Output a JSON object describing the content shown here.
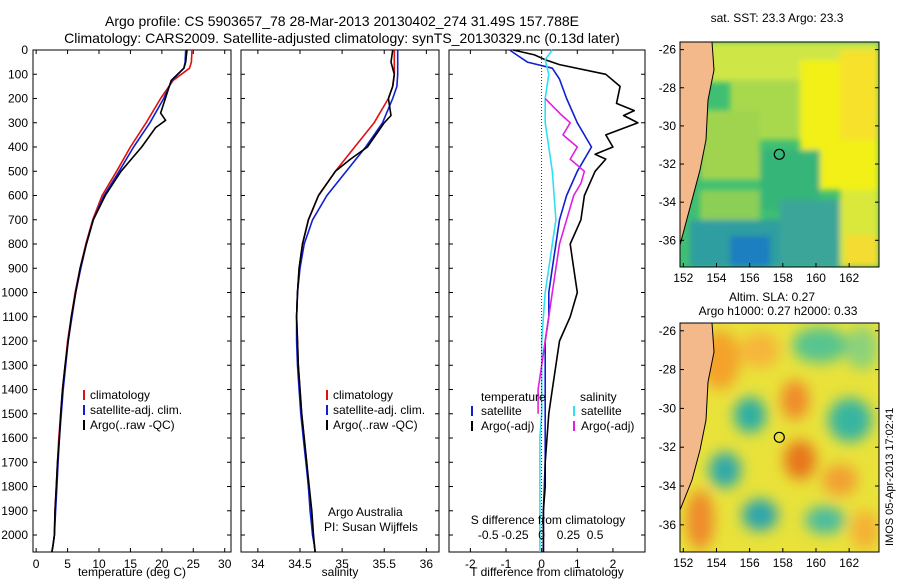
{
  "title": {
    "line1": "Argo profile: CS 5903657_78 28-Mar-2013 20130402_274 31.49S 157.788E",
    "line2": "Climatology: CARS2009. Satellite-adjusted climatology: synTS_20130329.nc (0.13d later)"
  },
  "colors": {
    "climatology": "#e01010",
    "satellite": "#1020d0",
    "argo": "#000000",
    "sal_satellite": "#30e0f0",
    "sal_argo": "#e020e0",
    "land": "#f4b98a"
  },
  "chart_data": [
    {
      "type": "line",
      "id": "temperature",
      "xlabel": "temperature (deg C)",
      "ylabel": "",
      "xlim": [
        -0.5,
        31
      ],
      "ylim": [
        2070,
        0
      ],
      "xticks": [
        0,
        5,
        10,
        15,
        20,
        25,
        30
      ],
      "yticks": [
        0,
        100,
        200,
        300,
        400,
        500,
        600,
        700,
        800,
        900,
        1000,
        1100,
        1200,
        1300,
        1400,
        1500,
        1600,
        1700,
        1800,
        1900,
        2000
      ],
      "legend": [
        "climatology",
        "satellite-adj. clim.",
        "Argo(..raw -QC)"
      ],
      "legend_position": "lower-right",
      "series": [
        {
          "name": "climatology",
          "color_key": "climatology",
          "x": [
            24.8,
            24.7,
            24.4,
            21.8,
            19.8,
            17.5,
            15.0,
            12.8,
            10.5,
            9.0,
            7.9,
            7.0,
            6.2,
            5.6,
            5.0,
            4.6,
            4.2,
            3.9,
            3.6,
            3.4,
            3.2,
            3.0,
            2.9,
            2.7,
            2.5
          ],
          "y": [
            0,
            50,
            75,
            125,
            200,
            300,
            400,
            500,
            600,
            700,
            800,
            900,
            1000,
            1100,
            1200,
            1300,
            1400,
            1500,
            1600,
            1700,
            1800,
            1900,
            2000,
            2040,
            2070
          ]
        },
        {
          "name": "satellite-adj. clim.",
          "color_key": "satellite",
          "x": [
            23.8,
            23.7,
            23.5,
            21.6,
            20.3,
            18.1,
            15.5,
            13.2,
            10.8,
            9.1,
            8.0,
            7.1,
            6.3,
            5.7,
            5.1,
            4.7,
            4.3,
            4.0,
            3.7,
            3.5,
            3.3,
            3.1,
            2.9,
            2.7,
            2.5
          ],
          "y": [
            0,
            50,
            75,
            125,
            200,
            300,
            400,
            500,
            600,
            700,
            800,
            900,
            1000,
            1100,
            1200,
            1300,
            1400,
            1500,
            1600,
            1700,
            1800,
            1900,
            2000,
            2040,
            2070
          ]
        },
        {
          "name": "Argo(..raw -QC)",
          "color_key": "argo",
          "x": [
            24.0,
            23.8,
            23.5,
            21.5,
            20.8,
            19.8,
            20.6,
            19.0,
            16.8,
            13.5,
            11.0,
            9.1,
            8.0,
            7.0,
            6.3,
            5.6,
            5.1,
            4.6,
            4.2,
            3.9,
            3.7,
            3.4,
            3.2,
            3.0,
            2.9,
            2.7,
            2.5
          ],
          "y": [
            0,
            50,
            75,
            125,
            180,
            260,
            290,
            320,
            400,
            500,
            600,
            700,
            800,
            900,
            1000,
            1100,
            1200,
            1300,
            1400,
            1500,
            1600,
            1700,
            1800,
            1900,
            2000,
            2040,
            2070
          ]
        }
      ]
    },
    {
      "type": "line",
      "id": "salinity",
      "xlabel": "salinity",
      "ylabel": "",
      "xlim": [
        33.8,
        36.15
      ],
      "ylim": [
        2070,
        0
      ],
      "xticks": [
        34,
        34.5,
        35,
        35.5,
        36
      ],
      "legend": [
        "climatology",
        "satellite-adj. clim.",
        "Argo(..raw -QC)"
      ],
      "legend_position": "lower-right",
      "annotation": [
        "Argo Australia",
        "PI: Susan Wijffels"
      ],
      "series": [
        {
          "name": "climatology",
          "color_key": "climatology",
          "x": [
            35.62,
            35.62,
            35.6,
            35.55,
            35.38,
            35.15,
            34.92,
            34.72,
            34.6,
            34.53,
            34.49,
            34.47,
            34.46,
            34.47,
            34.48,
            34.5,
            34.52,
            34.55,
            34.58,
            34.6,
            34.63,
            34.65,
            34.67,
            34.68
          ],
          "y": [
            0,
            100,
            150,
            200,
            300,
            400,
            500,
            600,
            700,
            800,
            900,
            1000,
            1100,
            1200,
            1300,
            1400,
            1500,
            1600,
            1700,
            1800,
            1900,
            2000,
            2040,
            2070
          ]
        },
        {
          "name": "satellite-adj. clim.",
          "color_key": "satellite",
          "x": [
            35.66,
            35.66,
            35.65,
            35.6,
            35.48,
            35.28,
            35.05,
            34.82,
            34.65,
            34.55,
            34.5,
            34.47,
            34.46,
            34.46,
            34.47,
            34.49,
            34.51,
            34.54,
            34.57,
            34.6,
            34.62,
            34.65,
            34.67,
            34.68
          ],
          "y": [
            0,
            100,
            150,
            200,
            300,
            400,
            500,
            600,
            700,
            800,
            900,
            1000,
            1100,
            1200,
            1300,
            1400,
            1500,
            1600,
            1700,
            1800,
            1900,
            2000,
            2040,
            2070
          ]
        },
        {
          "name": "Argo(..raw -QC)",
          "color_key": "argo",
          "x": [
            35.6,
            35.58,
            35.62,
            35.6,
            35.55,
            35.58,
            35.5,
            35.3,
            35.1,
            34.92,
            34.72,
            34.6,
            34.53,
            34.49,
            34.47,
            34.46,
            34.47,
            34.48,
            34.5,
            34.52,
            34.55,
            34.58,
            34.61,
            34.64,
            34.66,
            34.68
          ],
          "y": [
            0,
            50,
            100,
            150,
            200,
            270,
            300,
            400,
            450,
            500,
            600,
            700,
            800,
            900,
            1000,
            1100,
            1200,
            1300,
            1400,
            1500,
            1600,
            1700,
            1800,
            1900,
            2000,
            2070
          ]
        }
      ]
    },
    {
      "type": "line",
      "id": "difference",
      "xlabel": "T difference from climatology",
      "xlabel_top": "S difference from climatology",
      "xlim": [
        -2.6,
        2.9
      ],
      "ylim": [
        2070,
        0
      ],
      "xticks": [
        -2,
        -1,
        0,
        1,
        2
      ],
      "xticks_secondary": [
        {
          "pos": -1.5,
          "label": "-0.5"
        },
        {
          "pos": -0.75,
          "label": "-0.25"
        },
        {
          "pos": 0,
          "label": "0"
        },
        {
          "pos": 0.75,
          "label": "0.25"
        },
        {
          "pos": 1.5,
          "label": "0.5"
        }
      ],
      "legend_left": {
        "title": "temperature",
        "items": [
          "satellite",
          "Argo(-adj)"
        ]
      },
      "legend_right": {
        "title": "salinity",
        "items": [
          "satellite",
          "Argo(-adj)"
        ]
      },
      "series": [
        {
          "name": "temperature satellite",
          "color_key": "satellite",
          "x": [
            -0.9,
            -0.7,
            -0.4,
            0.3,
            0.5,
            0.7,
            1.0,
            1.4,
            1.0,
            0.7,
            0.5,
            0.4,
            0.3,
            0.2,
            0.2,
            0.1,
            0.1,
            0.1,
            0.1,
            0.1,
            0.05,
            0.05
          ],
          "y": [
            0,
            20,
            50,
            75,
            120,
            200,
            300,
            400,
            500,
            600,
            700,
            800,
            900,
            1000,
            1100,
            1200,
            1300,
            1400,
            1500,
            1700,
            1900,
            2070
          ]
        },
        {
          "name": "temperature Argo(-adj)",
          "color_key": "argo",
          "x": [
            -0.8,
            -0.2,
            0.1,
            0.5,
            1.8,
            2.2,
            2.1,
            2.6,
            2.3,
            2.7,
            1.8,
            2.0,
            1.5,
            1.8,
            1.5,
            1.2,
            1.1,
            0.8,
            0.9,
            1.0,
            0.8,
            0.5,
            0.4,
            0.3,
            0.2,
            0.15,
            0.1,
            0.1,
            0.05,
            0.05
          ],
          "y": [
            0,
            20,
            40,
            60,
            100,
            150,
            220,
            250,
            270,
            300,
            350,
            400,
            430,
            450,
            500,
            600,
            700,
            800,
            900,
            1000,
            1100,
            1200,
            1300,
            1400,
            1500,
            1600,
            1700,
            1800,
            1900,
            2070
          ]
        },
        {
          "name": "salinity satellite",
          "color_key": "sal_satellite",
          "x": [
            0.3,
            0.1,
            0.2,
            0.1,
            0.1,
            0.2,
            0.3,
            0.35,
            0.4,
            0.3,
            0.2,
            0.1,
            0.05,
            0.0,
            0.0,
            0.0,
            0.0,
            -0.05,
            -0.05,
            -0.05,
            -0.05,
            -0.05
          ],
          "y": [
            0,
            40,
            100,
            200,
            300,
            400,
            500,
            600,
            700,
            800,
            900,
            1000,
            1100,
            1200,
            1300,
            1400,
            1500,
            1600,
            1700,
            1800,
            1900,
            2070
          ]
        },
        {
          "name": "salinity Argo(-adj)",
          "color_key": "sal_argo",
          "x": [
            0.1,
            0.5,
            0.8,
            0.6,
            1.0,
            0.8,
            1.2,
            1.1,
            0.9,
            0.7,
            0.5,
            0.4,
            0.3,
            0.2,
            0.1,
            0.0,
            -0.1,
            -0.1,
            -0.1
          ],
          "y": [
            200,
            260,
            300,
            350,
            400,
            450,
            500,
            550,
            600,
            700,
            800,
            900,
            1000,
            1100,
            1200,
            1300,
            1400,
            1450,
            1500
          ]
        }
      ]
    },
    {
      "type": "heatmap",
      "id": "sst-map",
      "title": "sat. SST: 23.3  Argo: 23.3",
      "xlim": [
        151.8,
        163.8
      ],
      "ylim": [
        -37.4,
        -25.6
      ],
      "xticks": [
        152,
        154,
        156,
        158,
        160,
        162
      ],
      "yticks": [
        -26,
        -28,
        -30,
        -32,
        -34,
        -36
      ],
      "marker": {
        "lon": 157.788,
        "lat": -31.49
      }
    },
    {
      "type": "heatmap",
      "id": "sla-map",
      "title": "Altim. SLA: 0.27",
      "title2": "Argo h1000: 0.27 h2000: 0.33",
      "xlim": [
        151.8,
        163.8
      ],
      "ylim": [
        -37.4,
        -25.6
      ],
      "xticks": [
        152,
        154,
        156,
        158,
        160,
        162
      ],
      "yticks": [
        -26,
        -28,
        -30,
        -32,
        -34,
        -36
      ],
      "marker": {
        "lon": 157.788,
        "lat": -31.49
      }
    }
  ],
  "footer": {
    "ticks_depth_label": "",
    "imos_stamp": "IMOS 05-Apr-2013 17:02:41"
  }
}
